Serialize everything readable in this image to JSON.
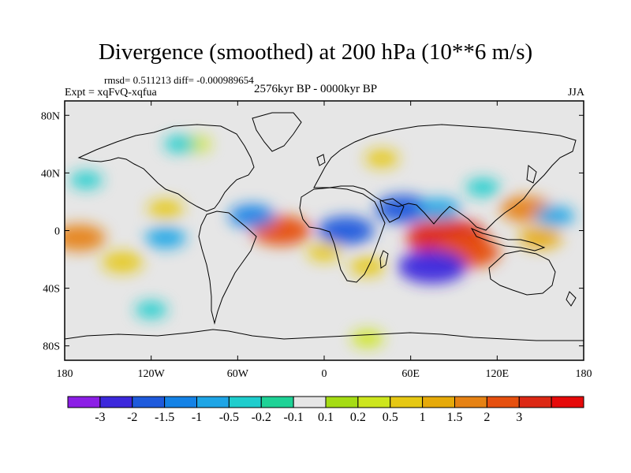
{
  "title": "Divergence (smoothed) at 200 hPa (10**6 m/s)",
  "stats": "rmsd= 0.511213 diff= -0.000989654",
  "experiment": "Expt = xqFvQ-xqfua",
  "period": "2576kyr BP - 0000kyr BP",
  "season": "JJA",
  "chart_data": {
    "type": "heatmap",
    "projection": "cylindrical-equidistant",
    "lon_range": [
      -180,
      180
    ],
    "lat_range": [
      -90,
      90
    ],
    "x_ticks": [
      {
        "lon": -180,
        "label": "180"
      },
      {
        "lon": -120,
        "label": "120W"
      },
      {
        "lon": -60,
        "label": "60W"
      },
      {
        "lon": 0,
        "label": "0"
      },
      {
        "lon": 60,
        "label": "60E"
      },
      {
        "lon": 120,
        "label": "120E"
      },
      {
        "lon": 180,
        "label": "180"
      }
    ],
    "y_ticks": [
      {
        "lat": 80,
        "label": "80N"
      },
      {
        "lat": 40,
        "label": "40N"
      },
      {
        "lat": 0,
        "label": "0"
      },
      {
        "lat": -40,
        "label": "40S"
      },
      {
        "lat": -80,
        "label": "80S"
      }
    ],
    "colorbar": {
      "colors": [
        "#8c1ee6",
        "#3c28dc",
        "#1e5adc",
        "#1482e6",
        "#1ea5e6",
        "#1ecdcd",
        "#1ed296",
        "#e6e6e6",
        "#a5dc14",
        "#cde61e",
        "#e6c814",
        "#e6aa0a",
        "#e68214",
        "#e6500f",
        "#dc2814",
        "#e60a0a"
      ],
      "labels": [
        "-3",
        "-2",
        "-1.5",
        "-1",
        "-0.5",
        "-0.2",
        "-0.1",
        "0.1",
        "0.2",
        "0.5",
        "1",
        "1.5",
        "2",
        "3"
      ]
    },
    "anomalies": [
      {
        "lon": 85,
        "lat": -5,
        "value": 3.2
      },
      {
        "lon": 100,
        "lat": -15,
        "value": 2.2
      },
      {
        "lon": -30,
        "lat": 0,
        "value": 2.0
      },
      {
        "lon": 140,
        "lat": 15,
        "value": 1.5
      },
      {
        "lon": -170,
        "lat": -5,
        "value": 1.6
      },
      {
        "lon": -140,
        "lat": -22,
        "value": 0.9
      },
      {
        "lon": -110,
        "lat": 15,
        "value": 0.6
      },
      {
        "lon": 150,
        "lat": -5,
        "value": 1.0
      },
      {
        "lon": 30,
        "lat": -25,
        "value": 0.6
      },
      {
        "lon": 40,
        "lat": 50,
        "value": 0.5
      },
      {
        "lon": -90,
        "lat": 60,
        "value": 0.4
      },
      {
        "lon": 75,
        "lat": -25,
        "value": -2.5
      },
      {
        "lon": 55,
        "lat": 15,
        "value": -1.8
      },
      {
        "lon": 15,
        "lat": 0,
        "value": -1.8
      },
      {
        "lon": -50,
        "lat": 10,
        "value": -1.2
      },
      {
        "lon": -110,
        "lat": -5,
        "value": -0.9
      },
      {
        "lon": 160,
        "lat": 10,
        "value": -0.8
      },
      {
        "lon": 80,
        "lat": 15,
        "value": -1.0
      },
      {
        "lon": -100,
        "lat": 60,
        "value": -0.4
      },
      {
        "lon": 110,
        "lat": 30,
        "value": -0.5
      },
      {
        "lon": -165,
        "lat": 35,
        "value": -0.4
      },
      {
        "lon": 0,
        "lat": -15,
        "value": 0.5
      },
      {
        "lon": 30,
        "lat": -75,
        "value": 0.4
      },
      {
        "lon": -120,
        "lat": -55,
        "value": -0.4
      }
    ]
  }
}
